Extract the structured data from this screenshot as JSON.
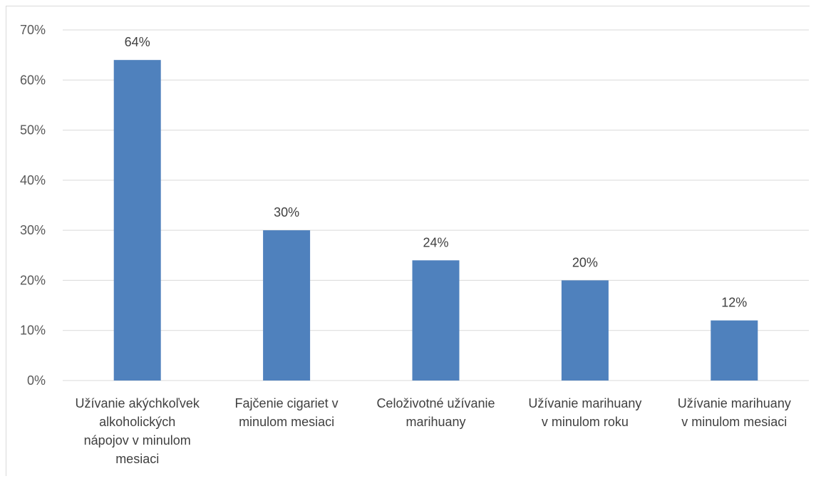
{
  "chart_data": {
    "type": "bar",
    "categories": [
      [
        "Užívanie akýchkoľvek",
        "alkoholických",
        "nápojov v minulom",
        "mesiaci"
      ],
      [
        "Fajčenie cigariet v",
        "minulom mesiaci"
      ],
      [
        "Celoživotné užívanie",
        "marihuany"
      ],
      [
        "Užívanie marihuany",
        "v minulom roku"
      ],
      [
        "Užívanie marihuany",
        "v minulom mesiaci"
      ]
    ],
    "values": [
      64,
      30,
      24,
      20,
      12
    ],
    "data_labels": [
      "64%",
      "30%",
      "24%",
      "20%",
      "12%"
    ],
    "ylim": [
      0,
      70
    ],
    "y_ticks": [
      0,
      10,
      20,
      30,
      40,
      50,
      60,
      70
    ],
    "y_tick_labels": [
      "0%",
      "10%",
      "20%",
      "30%",
      "40%",
      "50%",
      "60%",
      "70%"
    ],
    "grid": true,
    "bar_color": "#4f81bd",
    "grid_color": "#d9d9d9"
  }
}
